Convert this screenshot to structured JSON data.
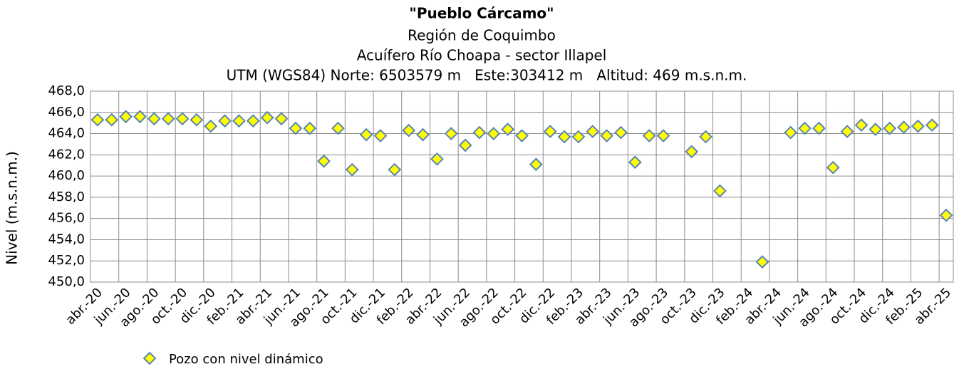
{
  "chart_data": {
    "type": "scatter",
    "title": "\"Pueblo Cárcamo\"",
    "subtitle": [
      "Región de Coquimbo",
      "Acuífero Río Choapa - sector Illapel",
      "UTM (WGS84) Norte: 6503579 m   Este:303412 m   Altitud: 469 m.s.n.m."
    ],
    "y_label": "Nivel (m.s.n.m.)",
    "categories": [
      "abr.-20",
      null,
      "jun.-20",
      null,
      "ago.-20",
      null,
      "oct.-20",
      null,
      "dic.-20",
      null,
      "feb.-21",
      null,
      "abr.-21",
      null,
      "jun.-21",
      null,
      "ago.-21",
      null,
      "oct.-21",
      null,
      "dic.-21",
      null,
      "feb.-22",
      null,
      "abr.-22",
      null,
      "jun.-22",
      null,
      "ago.-22",
      null,
      "oct.-22",
      null,
      "dic.-22",
      null,
      "feb.-23",
      null,
      "abr.-23",
      null,
      "jun.-23",
      null,
      "ago.-23",
      null,
      "oct.-23",
      null,
      "dic.-23",
      null,
      "feb.-24",
      null,
      "abr.-24",
      null,
      "jun.-24",
      null,
      "ago.-24",
      null,
      "oct.-24",
      null,
      "dic.-24",
      null,
      "feb.-25",
      null,
      "abr.-25"
    ],
    "series": [
      {
        "name": "Pozo con nivel dinámico",
        "color": "#ffff00",
        "edge_color": "#5b84b5",
        "values": [
          465.3,
          465.3,
          465.6,
          465.6,
          465.4,
          465.4,
          465.4,
          465.3,
          464.7,
          465.2,
          465.2,
          465.2,
          465.5,
          465.4,
          464.5,
          464.5,
          461.4,
          464.5,
          460.6,
          463.9,
          463.8,
          460.6,
          464.3,
          463.9,
          461.6,
          464.0,
          462.9,
          464.1,
          464.0,
          464.4,
          463.8,
          461.1,
          464.2,
          463.7,
          463.7,
          464.2,
          463.8,
          464.1,
          461.3,
          463.8,
          463.8,
          null,
          462.3,
          463.7,
          458.6,
          null,
          null,
          451.9,
          null,
          464.1,
          464.5,
          464.5,
          460.8,
          464.2,
          464.8,
          464.4,
          464.5,
          464.6,
          464.7,
          464.8,
          456.3
        ]
      }
    ],
    "ylim": [
      450,
      468
    ],
    "yticks": [
      {
        "value": 450,
        "label": "450,0"
      },
      {
        "value": 452,
        "label": "452,0"
      },
      {
        "value": 454,
        "label": "454,0"
      },
      {
        "value": 456,
        "label": "456,0"
      },
      {
        "value": 458,
        "label": "458,0"
      },
      {
        "value": 460,
        "label": "460,0"
      },
      {
        "value": 462,
        "label": "462,0"
      },
      {
        "value": 464,
        "label": "464,0"
      },
      {
        "value": 466,
        "label": "466,0"
      },
      {
        "value": 468,
        "label": "468,0"
      }
    ],
    "grid": true,
    "legend": "bottom-left"
  }
}
